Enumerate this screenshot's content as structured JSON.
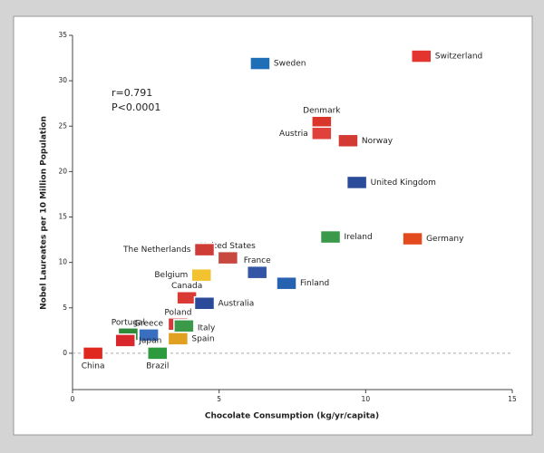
{
  "chart_data": {
    "type": "scatter",
    "x_label": "Chocolate Consumption (kg/yr/capita)",
    "y_label": "Nobel Laureates per 10 Million Population",
    "annotations": [
      "r=0.791",
      "P<0.0001"
    ],
    "xlim": [
      0,
      15
    ],
    "xticks": [
      0,
      5,
      10,
      15
    ],
    "ylim": [
      -4,
      35
    ],
    "yticks": [
      0,
      5,
      10,
      15,
      20,
      25,
      30,
      35
    ],
    "points": [
      {
        "name": "Sweden",
        "x": 6.4,
        "y": 31.9,
        "color": "#1f6fb8"
      },
      {
        "name": "Switzerland",
        "x": 11.9,
        "y": 32.7,
        "color": "#e3342f"
      },
      {
        "name": "Denmark",
        "x": 8.5,
        "y": 25.4,
        "color": "#d9352b"
      },
      {
        "name": "Austria",
        "x": 8.5,
        "y": 24.2,
        "color": "#e0413a"
      },
      {
        "name": "Norway",
        "x": 9.4,
        "y": 23.4,
        "color": "#d33a34"
      },
      {
        "name": "United Kingdom",
        "x": 9.7,
        "y": 18.8,
        "color": "#2b4c9a"
      },
      {
        "name": "Ireland",
        "x": 8.8,
        "y": 12.8,
        "color": "#3a9a4a"
      },
      {
        "name": "Germany",
        "x": 11.6,
        "y": 12.6,
        "color": "#e34b1f"
      },
      {
        "name": "United States",
        "x": 5.3,
        "y": 10.5,
        "color": "#c84840"
      },
      {
        "name": "The Netherlands",
        "x": 4.5,
        "y": 11.4,
        "color": "#cf3c36"
      },
      {
        "name": "France",
        "x": 6.3,
        "y": 8.9,
        "color": "#3355a5"
      },
      {
        "name": "Finland",
        "x": 7.3,
        "y": 7.7,
        "color": "#2762b0"
      },
      {
        "name": "Belgium",
        "x": 4.4,
        "y": 8.6,
        "color": "#f2c230"
      },
      {
        "name": "Canada",
        "x": 3.9,
        "y": 6.1,
        "color": "#d93a33"
      },
      {
        "name": "Australia",
        "x": 4.5,
        "y": 5.5,
        "color": "#2b4a99"
      },
      {
        "name": "Poland",
        "x": 3.6,
        "y": 3.2,
        "color": "#d8383a"
      },
      {
        "name": "Italy",
        "x": 3.8,
        "y": 3.0,
        "color": "#3a9a4a"
      },
      {
        "name": "Greece",
        "x": 2.6,
        "y": 2.0,
        "color": "#3a6fc0"
      },
      {
        "name": "Portugal",
        "x": 1.9,
        "y": 2.1,
        "color": "#2f8a3a"
      },
      {
        "name": "Spain",
        "x": 3.6,
        "y": 1.6,
        "color": "#e0a020"
      },
      {
        "name": "Japan",
        "x": 1.8,
        "y": 1.4,
        "color": "#d8282e"
      },
      {
        "name": "Brazil",
        "x": 2.9,
        "y": 0.0,
        "color": "#2e9a3e"
      },
      {
        "name": "China",
        "x": 0.7,
        "y": 0.0,
        "color": "#e0281e"
      }
    ]
  }
}
